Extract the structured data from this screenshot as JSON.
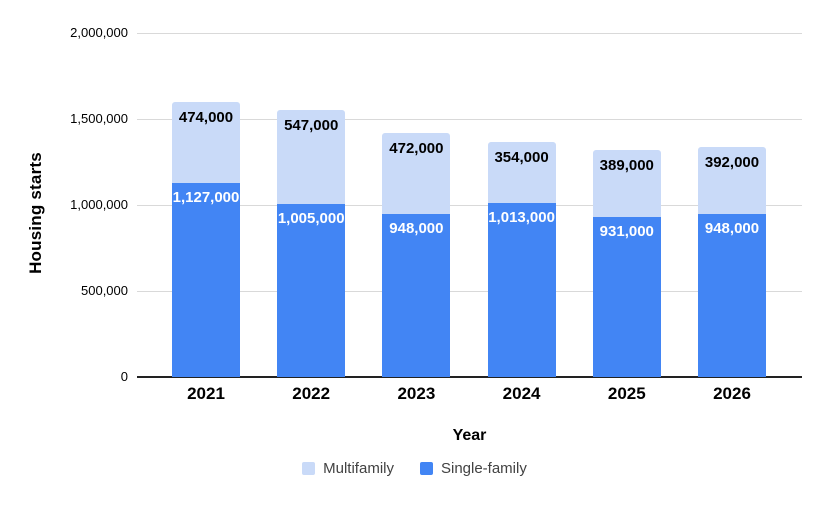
{
  "chart_data": {
    "type": "bar",
    "stacked": true,
    "title": "",
    "xlabel": "Year",
    "ylabel": "Housing starts",
    "categories": [
      "2021",
      "2022",
      "2023",
      "2024",
      "2025",
      "2026"
    ],
    "series": [
      {
        "name": "Single-family",
        "color": "#4285f4",
        "label_text_color": "#ffffff",
        "values": [
          1127000,
          1005000,
          948000,
          1013000,
          931000,
          948000
        ],
        "data_labels": [
          "1,127,000",
          "1,005,000",
          "948,000",
          "1,013,000",
          "931,000",
          "948,000"
        ]
      },
      {
        "name": "Multifamily",
        "color": "#c9daf8",
        "label_text_color": "#000000",
        "values": [
          474000,
          547000,
          472000,
          354000,
          389000,
          392000
        ],
        "data_labels": [
          "474,000",
          "547,000",
          "472,000",
          "354,000",
          "389,000",
          "392,000"
        ]
      }
    ],
    "ylim": [
      0,
      2000000
    ],
    "yticks": [
      0,
      500000,
      1000000,
      1500000,
      2000000
    ],
    "ytick_labels": [
      "0",
      "500,000",
      "1,000,000",
      "1,500,000",
      "2,000,000"
    ],
    "grid": true,
    "legend_position": "bottom",
    "legend_order": [
      "Multifamily",
      "Single-family"
    ]
  },
  "colors": {
    "gridline": "#d9d9d9",
    "axis_line": "#222222",
    "background": "#ffffff",
    "tick_text": "#000000",
    "legend_text": "#424242"
  }
}
